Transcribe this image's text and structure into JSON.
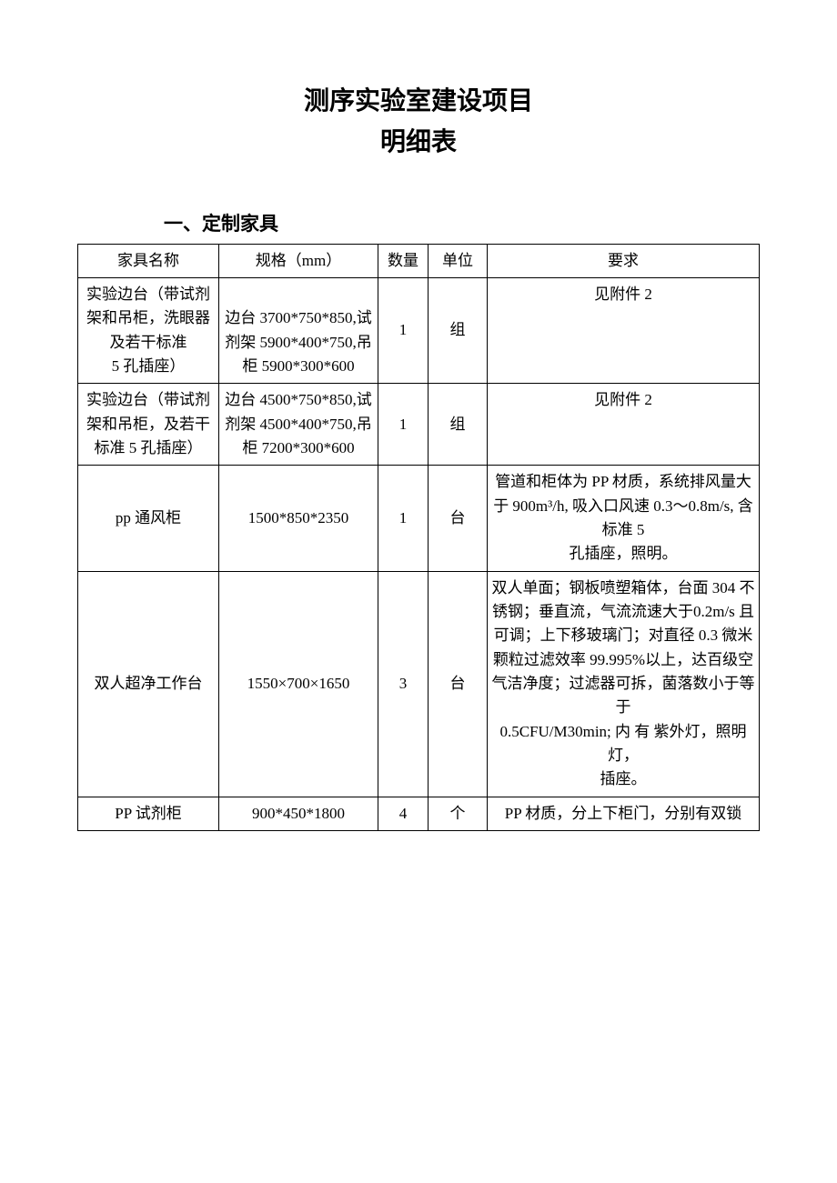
{
  "title": {
    "main": "测序实验室建设项目",
    "sub": "明细表"
  },
  "section1": {
    "heading": "一、定制家具",
    "columns": [
      "家具名称",
      "规格（mm）",
      "数量",
      "单位",
      "要求"
    ],
    "rows": [
      {
        "name": "实验边台（带试剂架和吊柜，洗眼器及若干标准\n5 孔插座）",
        "spec": "边台 3700*750*850,试剂架 5900*400*750,吊柜 5900*300*600",
        "qty": "1",
        "unit": "组",
        "req": "见附件 2"
      },
      {
        "name": "实验边台（带试剂架和吊柜，及若干标准 5 孔插座）",
        "spec": "边台 4500*750*850,试剂架 4500*400*750,吊柜 7200*300*600",
        "qty": "1",
        "unit": "组",
        "req": "见附件 2"
      },
      {
        "name": "pp 通风柜",
        "spec": "1500*850*2350",
        "qty": "1",
        "unit": "台",
        "req": "管道和柜体为 PP 材质，系统排风量大于 900m³/h, 吸入口风速 0.3～0.8m/s, 含标准 5\n孔插座，照明。"
      },
      {
        "name": "双人超净工作台",
        "spec": "1550×700×1650",
        "qty": "3",
        "unit": "台",
        "req": "双人单面；钢板喷塑箱体，台面 304 不锈钢；垂直流，气流流速大于0.2m/s 且可调；上下移玻璃门；对直径 0.3 微米颗粒过滤效率 99.995%以上，达百级空气洁净度；过滤器可拆，菌落数小于等于\n0.5CFU/M30min; 内 有 紫外灯，照明灯，\n插座。"
      },
      {
        "name": "PP 试剂柜",
        "spec": "900*450*1800",
        "qty": "4",
        "unit": "个",
        "req": "PP 材质，分上下柜门，分别有双锁"
      }
    ]
  },
  "style": {
    "page_bg": "#ffffff",
    "text_color": "#000000",
    "border_color": "#000000",
    "title_fontsize": 28,
    "heading_fontsize": 21,
    "cell_fontsize": 17,
    "font_family": "SimSun"
  }
}
